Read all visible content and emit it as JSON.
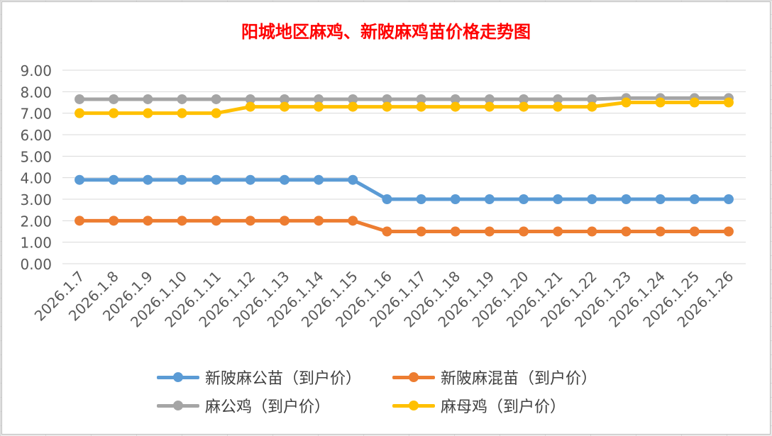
{
  "chart_data": {
    "type": "line",
    "title": "阳城地区麻鸡、新陂麻鸡苗价格走势图",
    "xlabel": "",
    "ylabel": "",
    "categories": [
      "2026.1.7",
      "2026.1.8",
      "2026.1.9",
      "2026.1.10",
      "2026.1.11",
      "2026.1.12",
      "2026.1.13",
      "2026.1.14",
      "2026.1.15",
      "2026.1.16",
      "2026.1.17",
      "2026.1.18",
      "2026.1.19",
      "2026.1.20",
      "2026.1.21",
      "2026.1.22",
      "2026.1.23",
      "2026.1.24",
      "2026.1.25",
      "2026.1.26"
    ],
    "ylim": [
      0,
      9
    ],
    "yticks": [
      "0.00",
      "1.00",
      "2.00",
      "3.00",
      "4.00",
      "5.00",
      "6.00",
      "7.00",
      "8.00",
      "9.00"
    ],
    "grid": true,
    "legend_position": "bottom",
    "series": [
      {
        "name": "新陂麻公苗（到户价）",
        "color": "#5b9bd5",
        "values": [
          3.9,
          3.9,
          3.9,
          3.9,
          3.9,
          3.9,
          3.9,
          3.9,
          3.9,
          3.0,
          3.0,
          3.0,
          3.0,
          3.0,
          3.0,
          3.0,
          3.0,
          3.0,
          3.0,
          3.0
        ]
      },
      {
        "name": "新陂麻混苗（到户价）",
        "color": "#ed7d31",
        "values": [
          2.0,
          2.0,
          2.0,
          2.0,
          2.0,
          2.0,
          2.0,
          2.0,
          2.0,
          1.5,
          1.5,
          1.5,
          1.5,
          1.5,
          1.5,
          1.5,
          1.5,
          1.5,
          1.5,
          1.5
        ]
      },
      {
        "name": "麻公鸡（到户价）",
        "color": "#a5a5a5",
        "values": [
          7.65,
          7.65,
          7.65,
          7.65,
          7.65,
          7.65,
          7.65,
          7.65,
          7.65,
          7.65,
          7.65,
          7.65,
          7.65,
          7.65,
          7.65,
          7.65,
          7.7,
          7.7,
          7.7,
          7.7
        ]
      },
      {
        "name": "麻母鸡（到户价）",
        "color": "#ffc000",
        "values": [
          7.0,
          7.0,
          7.0,
          7.0,
          7.0,
          7.3,
          7.3,
          7.3,
          7.3,
          7.3,
          7.3,
          7.3,
          7.3,
          7.3,
          7.3,
          7.3,
          7.5,
          7.5,
          7.5,
          7.5
        ]
      }
    ]
  }
}
